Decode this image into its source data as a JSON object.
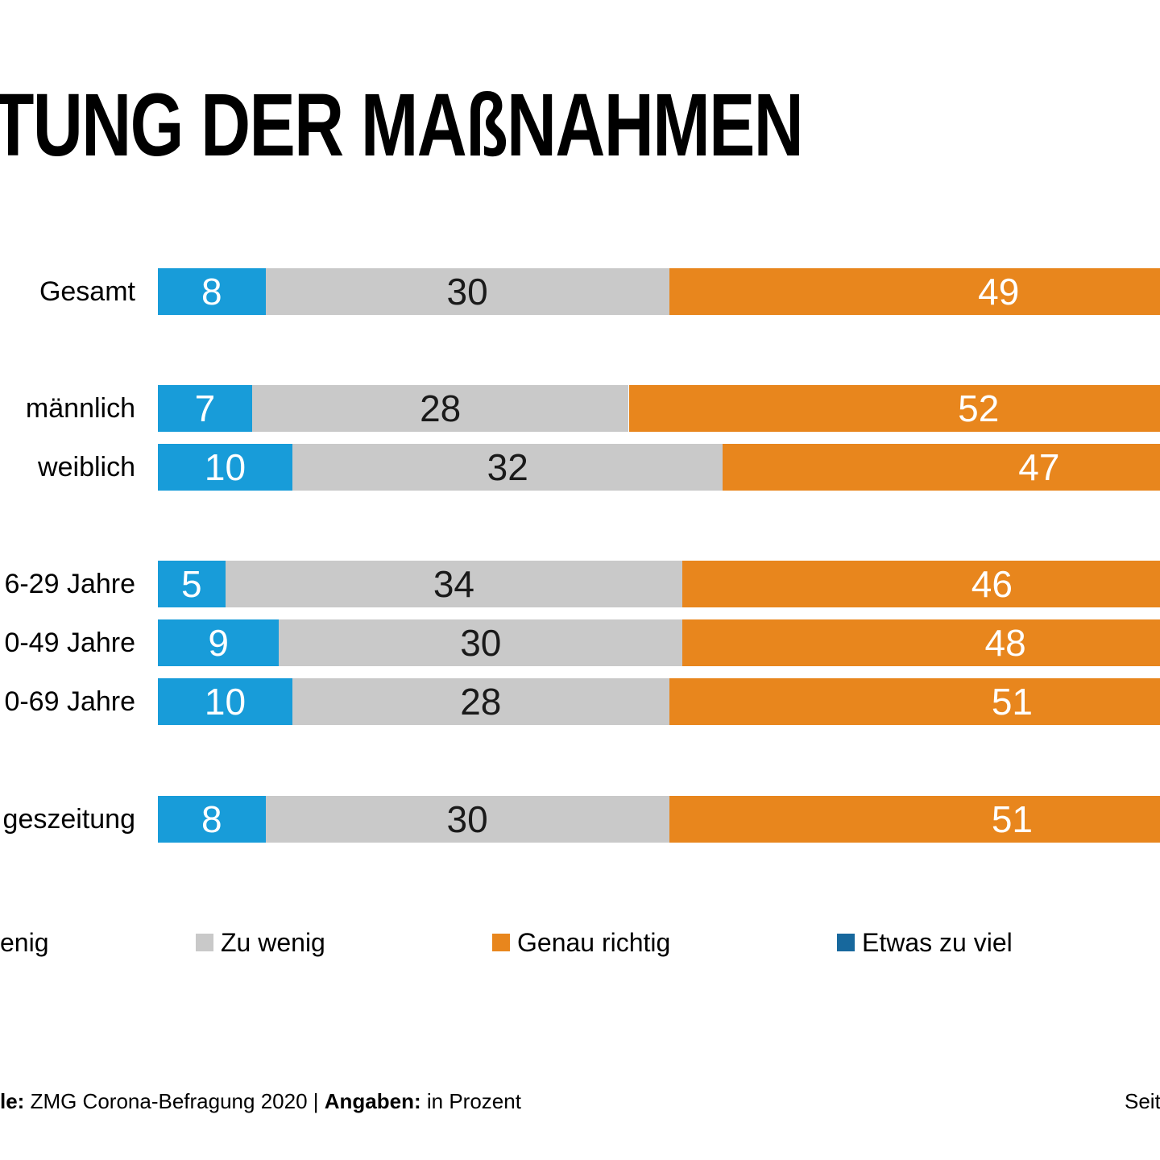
{
  "title": "TUNG DER MAßNAHMEN",
  "chart_data": {
    "type": "bar",
    "orientation": "horizontal",
    "stacked": true,
    "title": "TUNG DER MAßNAHMEN",
    "categories": [
      "Gesamt",
      "männlich",
      "weiblich",
      "6-29 Jahre",
      "0-49 Jahre",
      "0-69 Jahre",
      "geszeitung"
    ],
    "series": [
      {
        "name": "enig",
        "color": "#189CD9",
        "value_text_color": "#ffffff",
        "values": [
          8,
          7,
          10,
          5,
          9,
          10,
          8
        ]
      },
      {
        "name": "Zu wenig",
        "color": "#C9C9C9",
        "value_text_color": "#1a1a1a",
        "values": [
          30,
          28,
          32,
          34,
          30,
          28,
          30
        ]
      },
      {
        "name": "Genau richtig",
        "color": "#E8861D",
        "value_text_color": "#ffffff",
        "values": [
          49,
          52,
          47,
          46,
          48,
          51,
          51
        ]
      },
      {
        "name": "Etwas zu viel",
        "color": "#17689D",
        "values": []
      }
    ],
    "value_unit": "Prozent",
    "legend_position": "bottom",
    "grid": false,
    "note": "bars clipped at right image edge"
  },
  "legend": {
    "items": [
      {
        "label": "enig",
        "color": "#189CD9",
        "square_visible": false
      },
      {
        "label": "Zu wenig",
        "color": "#C9C9C9",
        "square_visible": true
      },
      {
        "label": "Genau richtig",
        "color": "#E8861D",
        "square_visible": true
      },
      {
        "label": "Etwas zu viel",
        "color": "#17689D",
        "square_visible": true
      }
    ]
  },
  "footer": {
    "source_prefix": "le:",
    "source_text": " ZMG Corona-Befragung 2020 | ",
    "angaben_label": "Angaben:",
    "angaben_value": " in Prozent",
    "page": "Seit"
  },
  "colors": {
    "background": "#ffffff",
    "text": "#000000",
    "light_blue": "#189CD9",
    "gray": "#C9C9C9",
    "orange": "#E8861D",
    "dark_blue": "#17689D"
  }
}
